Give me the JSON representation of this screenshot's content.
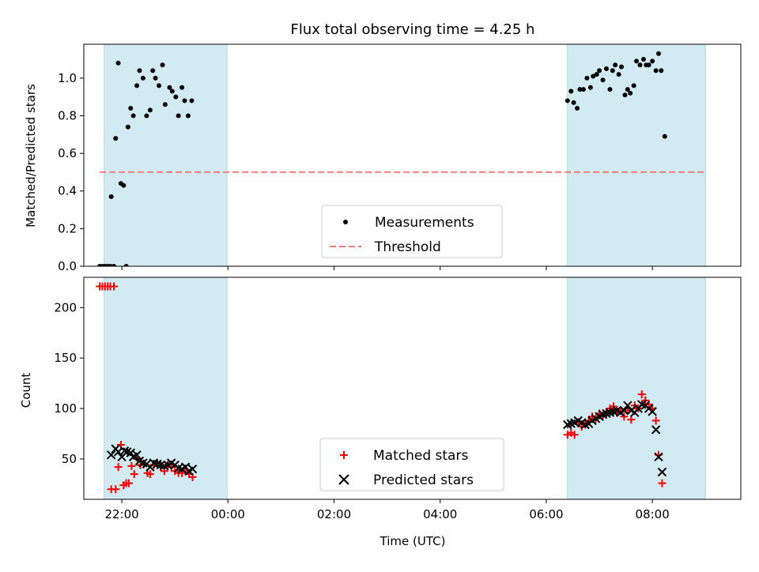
{
  "title": "Flux total observing time = 4.25 h",
  "colors": {
    "band": "#add8e6",
    "measurement": "#000000",
    "threshold": "#f08080",
    "matched": "#ff0000",
    "predicted": "#000000"
  },
  "chart_data": [
    {
      "type": "scatter",
      "panel": "top",
      "ylabel": "Matched/Predicted stars",
      "xlabel": "",
      "xaxis": "time",
      "xlim": [
        "21:17",
        "09:40"
      ],
      "ylim": [
        0,
        1.18
      ],
      "yticks": [
        0.0,
        0.2,
        0.4,
        0.6,
        0.8,
        1.0
      ],
      "ytick_labels": [
        "0.0",
        "0.2",
        "0.4",
        "0.6",
        "0.8",
        "1.0"
      ],
      "xticks": [
        "22:00",
        "00:00",
        "02:00",
        "04:00",
        "06:00",
        "08:00"
      ],
      "shaded_bands": [
        [
          "21:40",
          "23:59"
        ],
        [
          "06:24",
          "09:00"
        ]
      ],
      "legend": {
        "placement": "lower-center",
        "entries": [
          "Measurements",
          "Threshold"
        ]
      },
      "threshold": {
        "name": "Threshold",
        "y": 0.5,
        "x_range": [
          "21:35",
          "09:00"
        ]
      },
      "series": [
        {
          "name": "Measurements",
          "marker": "dot",
          "points": [
            [
              "21:35",
              0.0
            ],
            [
              "21:38",
              0.0
            ],
            [
              "21:41",
              0.0
            ],
            [
              "21:44",
              0.0
            ],
            [
              "21:47",
              0.0
            ],
            [
              "21:51",
              0.0
            ],
            [
              "21:48",
              0.37
            ],
            [
              "21:53",
              0.68
            ],
            [
              "21:56",
              1.08
            ],
            [
              "21:59",
              0.44
            ],
            [
              "22:02",
              0.43
            ],
            [
              "22:05",
              0.0
            ],
            [
              "22:07",
              0.74
            ],
            [
              "22:10",
              0.84
            ],
            [
              "22:13",
              0.8
            ],
            [
              "22:17",
              0.96
            ],
            [
              "22:20",
              1.04
            ],
            [
              "22:24",
              1.0
            ],
            [
              "22:28",
              0.8
            ],
            [
              "22:32",
              0.83
            ],
            [
              "22:35",
              1.04
            ],
            [
              "22:38",
              1.0
            ],
            [
              "22:42",
              0.96
            ],
            [
              "22:46",
              1.07
            ],
            [
              "22:49",
              0.86
            ],
            [
              "22:54",
              0.95
            ],
            [
              "22:57",
              0.93
            ],
            [
              "23:01",
              0.9
            ],
            [
              "23:04",
              0.8
            ],
            [
              "23:08",
              0.95
            ],
            [
              "23:11",
              0.88
            ],
            [
              "23:15",
              0.8
            ],
            [
              "23:19",
              0.88
            ],
            [
              "06:24",
              0.88
            ],
            [
              "06:28",
              0.93
            ],
            [
              "06:31",
              0.87
            ],
            [
              "06:35",
              0.84
            ],
            [
              "06:38",
              0.94
            ],
            [
              "06:42",
              0.94
            ],
            [
              "06:46",
              1.0
            ],
            [
              "06:50",
              0.95
            ],
            [
              "06:53",
              1.01
            ],
            [
              "06:57",
              1.02
            ],
            [
              "07:00",
              1.04
            ],
            [
              "07:04",
              0.99
            ],
            [
              "07:08",
              1.05
            ],
            [
              "07:12",
              0.94
            ],
            [
              "07:15",
              1.04
            ],
            [
              "07:18",
              1.07
            ],
            [
              "07:22",
              1.02
            ],
            [
              "07:25",
              1.06
            ],
            [
              "07:29",
              0.91
            ],
            [
              "07:32",
              0.94
            ],
            [
              "07:35",
              0.92
            ],
            [
              "07:39",
              0.96
            ],
            [
              "07:42",
              1.09
            ],
            [
              "07:46",
              1.07
            ],
            [
              "07:50",
              1.1
            ],
            [
              "07:53",
              1.07
            ],
            [
              "07:56",
              1.07
            ],
            [
              "08:00",
              1.09
            ],
            [
              "08:04",
              1.04
            ],
            [
              "08:07",
              1.13
            ],
            [
              "08:10",
              1.04
            ],
            [
              "08:14",
              0.69
            ]
          ]
        }
      ]
    },
    {
      "type": "scatter",
      "panel": "bottom",
      "ylabel": "Count",
      "xlabel": "Time (UTC)",
      "xaxis": "time",
      "xlim": [
        "21:17",
        "09:40"
      ],
      "ylim": [
        10,
        230
      ],
      "yticks": [
        50,
        100,
        150,
        200
      ],
      "ytick_labels": [
        "50",
        "100",
        "150",
        "200"
      ],
      "xticks": [
        "22:00",
        "00:00",
        "02:00",
        "04:00",
        "06:00",
        "08:00"
      ],
      "xtick_labels": [
        "22:00",
        "00:00",
        "02:00",
        "04:00",
        "06:00",
        "08:00"
      ],
      "shaded_bands": [
        [
          "21:40",
          "23:59"
        ],
        [
          "06:24",
          "09:00"
        ]
      ],
      "legend": {
        "placement": "lower-center",
        "entries": [
          "Matched stars",
          "Predicted stars"
        ]
      },
      "series": [
        {
          "name": "Matched stars",
          "marker": "plus",
          "points": [
            [
              "21:35",
              221
            ],
            [
              "21:38",
              221
            ],
            [
              "21:41",
              221
            ],
            [
              "21:44",
              221
            ],
            [
              "21:47",
              221
            ],
            [
              "21:51",
              221
            ],
            [
              "21:48",
              20
            ],
            [
              "21:53",
              20
            ],
            [
              "21:56",
              42
            ],
            [
              "21:59",
              64
            ],
            [
              "22:02",
              24
            ],
            [
              "22:05",
              26
            ],
            [
              "22:08",
              26
            ],
            [
              "22:11",
              43
            ],
            [
              "22:14",
              35
            ],
            [
              "22:18",
              50
            ],
            [
              "22:21",
              44
            ],
            [
              "22:25",
              45
            ],
            [
              "22:29",
              36
            ],
            [
              "22:32",
              35
            ],
            [
              "22:36",
              44
            ],
            [
              "22:40",
              46
            ],
            [
              "22:44",
              42
            ],
            [
              "22:48",
              38
            ],
            [
              "22:52",
              44
            ],
            [
              "22:56",
              42
            ],
            [
              "23:00",
              38
            ],
            [
              "23:04",
              36
            ],
            [
              "23:08",
              36
            ],
            [
              "23:12",
              38
            ],
            [
              "23:16",
              35
            ],
            [
              "23:20",
              32
            ],
            [
              "06:24",
              74
            ],
            [
              "06:28",
              76
            ],
            [
              "06:32",
              74
            ],
            [
              "06:36",
              86
            ],
            [
              "06:40",
              82
            ],
            [
              "06:44",
              84
            ],
            [
              "06:48",
              88
            ],
            [
              "06:52",
              92
            ],
            [
              "06:56",
              90
            ],
            [
              "07:00",
              95
            ],
            [
              "07:04",
              93
            ],
            [
              "07:08",
              96
            ],
            [
              "07:12",
              100
            ],
            [
              "07:16",
              102
            ],
            [
              "07:20",
              96
            ],
            [
              "07:24",
              98
            ],
            [
              "07:28",
              92
            ],
            [
              "07:32",
              98
            ],
            [
              "07:36",
              89
            ],
            [
              "07:40",
              103
            ],
            [
              "07:44",
              100
            ],
            [
              "07:48",
              114
            ],
            [
              "07:52",
              108
            ],
            [
              "07:56",
              104
            ],
            [
              "08:00",
              100
            ],
            [
              "08:04",
              88
            ],
            [
              "08:07",
              54
            ],
            [
              "08:11",
              26
            ]
          ]
        },
        {
          "name": "Predicted stars",
          "marker": "x",
          "points": [
            [
              "21:48",
              54
            ],
            [
              "21:53",
              60
            ],
            [
              "21:56",
              57
            ],
            [
              "22:00",
              52
            ],
            [
              "22:03",
              58
            ],
            [
              "22:06",
              57
            ],
            [
              "22:10",
              56
            ],
            [
              "22:13",
              52
            ],
            [
              "22:17",
              54
            ],
            [
              "22:20",
              48
            ],
            [
              "22:24",
              46
            ],
            [
              "22:28",
              45
            ],
            [
              "22:32",
              42
            ],
            [
              "22:36",
              46
            ],
            [
              "22:40",
              45
            ],
            [
              "22:44",
              44
            ],
            [
              "22:48",
              43
            ],
            [
              "22:52",
              44
            ],
            [
              "22:56",
              46
            ],
            [
              "23:00",
              44
            ],
            [
              "23:04",
              41
            ],
            [
              "23:08",
              40
            ],
            [
              "23:12",
              42
            ],
            [
              "23:16",
              38
            ],
            [
              "23:20",
              40
            ],
            [
              "06:24",
              84
            ],
            [
              "06:28",
              85
            ],
            [
              "06:32",
              86
            ],
            [
              "06:36",
              88
            ],
            [
              "06:40",
              86
            ],
            [
              "06:44",
              84
            ],
            [
              "06:48",
              85
            ],
            [
              "06:52",
              88
            ],
            [
              "06:56",
              90
            ],
            [
              "07:00",
              92
            ],
            [
              "07:04",
              94
            ],
            [
              "07:08",
              95
            ],
            [
              "07:12",
              96
            ],
            [
              "07:16",
              97
            ],
            [
              "07:20",
              98
            ],
            [
              "07:24",
              96
            ],
            [
              "07:28",
              98
            ],
            [
              "07:32",
              103
            ],
            [
              "07:36",
              98
            ],
            [
              "07:40",
              96
            ],
            [
              "07:44",
              100
            ],
            [
              "07:48",
              104
            ],
            [
              "07:52",
              103
            ],
            [
              "07:56",
              100
            ],
            [
              "08:00",
              97
            ],
            [
              "08:04",
              79
            ],
            [
              "08:07",
              52
            ],
            [
              "08:11",
              37
            ]
          ]
        }
      ]
    }
  ]
}
